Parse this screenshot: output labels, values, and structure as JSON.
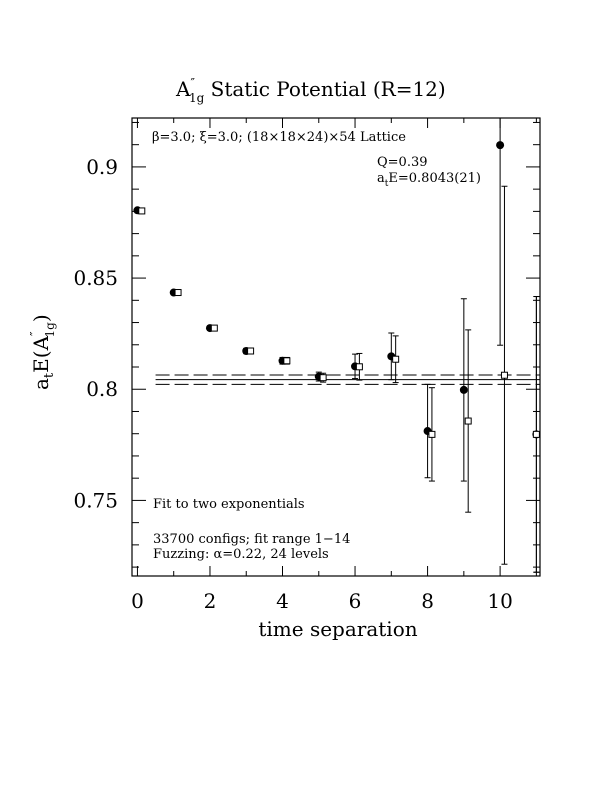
{
  "chart_data": {
    "type": "scatter",
    "title": "A″1g Static Potential (R=12)",
    "title_parts": {
      "base": "A",
      "prime": "″",
      "sub": "1g",
      "rest": " Static Potential (R=12)"
    },
    "xlabel": "time separation",
    "ylabel_parts": {
      "base": "a",
      "sub1": "t",
      "mid": "E(A",
      "prime": "″",
      "sub2": "1g",
      "end": ")"
    },
    "xlim": [
      -0.15,
      11.1
    ],
    "ylim": [
      0.716,
      0.922
    ],
    "x_ticks": [
      0,
      2,
      4,
      6,
      8,
      10
    ],
    "y_ticks": [
      0.75,
      0.8,
      0.85,
      0.9
    ],
    "y_tick_labels": [
      "0.75",
      "0.8",
      "0.85",
      "0.9"
    ],
    "annotations": {
      "lattice": "β=3.0; ξ=3.0; (18×18×24)×54 Lattice",
      "q": "Q=0.39",
      "energy_parts": {
        "base": "a",
        "sub": "t",
        "rest": "E=0.8043(21)"
      },
      "fit": "Fit to two exponentials",
      "configs": "33700 configs; fit range 1−14",
      "fuzzing": "Fuzzing: α=0.22, 24 levels"
    },
    "fit": {
      "value": 0.8043,
      "error": 0.0021,
      "x_range": [
        0.5,
        11.1
      ]
    },
    "series": [
      {
        "marker": "filled-circle",
        "points": [
          {
            "x": 0,
            "y": 0.8805,
            "err": 0.0006
          },
          {
            "x": 1,
            "y": 0.8435,
            "err": 0.0008
          },
          {
            "x": 2,
            "y": 0.8275,
            "err": 0.001
          },
          {
            "x": 3,
            "y": 0.8172,
            "err": 0.0012
          },
          {
            "x": 4,
            "y": 0.8128,
            "err": 0.0015
          },
          {
            "x": 5,
            "y": 0.8057,
            "err": 0.002
          },
          {
            "x": 6,
            "y": 0.8103,
            "err": 0.0055
          },
          {
            "x": 7,
            "y": 0.8148,
            "err": 0.0105
          },
          {
            "x": 8,
            "y": 0.7812,
            "err": 0.021
          },
          {
            "x": 9,
            "y": 0.7997,
            "err": 0.041
          },
          {
            "x": 10,
            "y": 0.9098,
            "err": 0.09
          },
          {
            "x": 11,
            "y": 0.7797,
            "err": 0.062
          }
        ]
      },
      {
        "marker": "open-square",
        "points": [
          {
            "x": 0.12,
            "y": 0.8802,
            "err": 0.0006
          },
          {
            "x": 1.12,
            "y": 0.8435,
            "err": 0.0008
          },
          {
            "x": 2.12,
            "y": 0.8275,
            "err": 0.001
          },
          {
            "x": 3.12,
            "y": 0.8172,
            "err": 0.0012
          },
          {
            "x": 4.12,
            "y": 0.8128,
            "err": 0.0015
          },
          {
            "x": 5.12,
            "y": 0.8052,
            "err": 0.002
          },
          {
            "x": 6.12,
            "y": 0.8101,
            "err": 0.006
          },
          {
            "x": 7.12,
            "y": 0.8135,
            "err": 0.0105
          },
          {
            "x": 8.12,
            "y": 0.7797,
            "err": 0.021
          },
          {
            "x": 9.12,
            "y": 0.7857,
            "err": 0.041
          },
          {
            "x": 10.12,
            "y": 0.8063,
            "err": 0.085
          },
          {
            "x": 11.0,
            "y": 0.7797,
            "err": 0.062
          }
        ]
      }
    ]
  }
}
